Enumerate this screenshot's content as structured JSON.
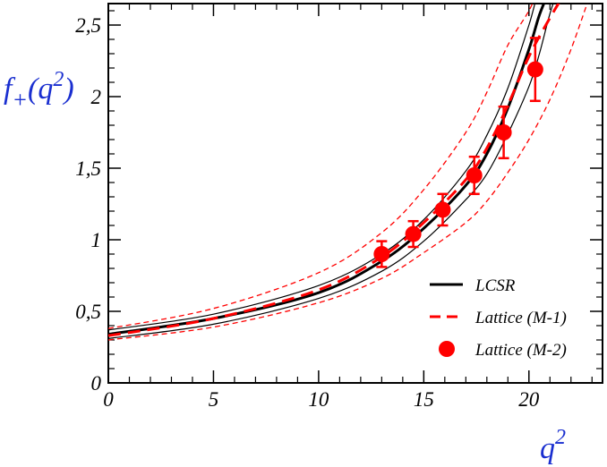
{
  "chart_data": {
    "type": "line",
    "title": "",
    "xlabel": "q",
    "xlabel_sup": "2",
    "ylabel": {
      "base": "f",
      "sub": "+",
      "open": "(q",
      "sup": "2",
      "close": ")"
    },
    "xlim": [
      0,
      23.5
    ],
    "ylim": [
      0,
      2.65
    ],
    "x_ticks": [
      0,
      5,
      10,
      15,
      20
    ],
    "x_tick_labels": [
      "0",
      "5",
      "10",
      "15",
      "20"
    ],
    "y_ticks": [
      0,
      0.5,
      1,
      1.5,
      2,
      2.5
    ],
    "y_tick_labels": [
      "0",
      "0,5",
      "1",
      "1,5",
      "2",
      "2,5"
    ],
    "grid": false,
    "legend_position": "bottom-right",
    "colors": {
      "lcsr": "#000000",
      "lattice": "#ff0000",
      "axis_title": "#1a2fd0"
    },
    "series": [
      {
        "name": "LCSR",
        "style": "solid-black",
        "central": {
          "x": [
            0,
            5,
            10,
            13,
            15,
            17,
            18,
            19,
            20,
            20.5,
            21.0
          ],
          "y": [
            0.34,
            0.45,
            0.63,
            0.85,
            1.08,
            1.38,
            1.6,
            1.92,
            2.33,
            2.57,
            2.75
          ]
        },
        "upper": {
          "x": [
            0,
            5,
            10,
            13,
            15,
            17,
            18,
            19,
            20,
            20.5,
            21.0
          ],
          "y": [
            0.37,
            0.48,
            0.68,
            0.9,
            1.14,
            1.48,
            1.73,
            2.06,
            2.5,
            2.75,
            2.8
          ]
        },
        "lower": {
          "x": [
            0,
            5,
            10,
            13,
            15,
            17,
            18,
            19,
            20,
            20.5,
            21.0,
            21.5
          ],
          "y": [
            0.31,
            0.41,
            0.59,
            0.78,
            0.99,
            1.28,
            1.46,
            1.74,
            2.07,
            2.3,
            2.58,
            2.8
          ]
        }
      },
      {
        "name": "Lattice (M-1)",
        "style": "dashed-red",
        "central": {
          "x": [
            0,
            5,
            10,
            13,
            15,
            17,
            18,
            19,
            20,
            21,
            21.7
          ],
          "y": [
            0.33,
            0.45,
            0.65,
            0.88,
            1.12,
            1.42,
            1.64,
            1.94,
            2.28,
            2.55,
            2.72
          ]
        },
        "upper": {
          "x": [
            0,
            5,
            10,
            13,
            15,
            17,
            18,
            19,
            20,
            20.6
          ],
          "y": [
            0.38,
            0.52,
            0.77,
            1.05,
            1.35,
            1.75,
            2.03,
            2.36,
            2.6,
            2.8
          ]
        },
        "lower": {
          "x": [
            0,
            5,
            10,
            13,
            15,
            17,
            18,
            19,
            20,
            21,
            22,
            23
          ],
          "y": [
            0.3,
            0.39,
            0.56,
            0.73,
            0.91,
            1.12,
            1.27,
            1.47,
            1.7,
            1.98,
            2.33,
            2.75
          ]
        }
      },
      {
        "name": "Lattice (M-2)",
        "style": "red-points",
        "points": [
          {
            "x": 13.0,
            "y": 0.9,
            "err": 0.09
          },
          {
            "x": 14.5,
            "y": 1.04,
            "err": 0.09
          },
          {
            "x": 15.9,
            "y": 1.21,
            "err": 0.11
          },
          {
            "x": 17.4,
            "y": 1.45,
            "err": 0.13
          },
          {
            "x": 18.8,
            "y": 1.75,
            "err": 0.18
          },
          {
            "x": 20.3,
            "y": 2.19,
            "err": 0.22
          }
        ]
      }
    ],
    "legend": [
      "LCSR",
      "Lattice (M-1)",
      "Lattice (M-2)"
    ]
  }
}
